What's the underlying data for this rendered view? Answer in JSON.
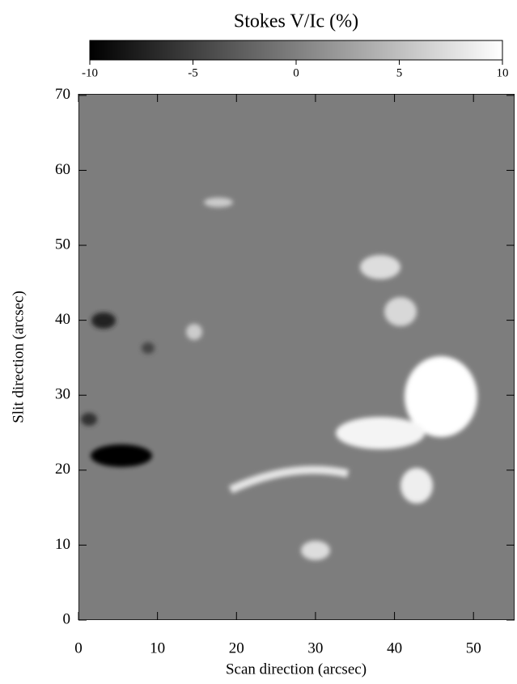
{
  "chart_data": {
    "type": "image",
    "title": "Stokes V/Ic (%)",
    "colorbar": {
      "clim": [
        -10,
        10
      ],
      "ticks": [
        -10,
        -5,
        0,
        5,
        10
      ],
      "colors": [
        "#000000",
        "#ffffff"
      ]
    },
    "xlabel": "Scan direction (arcsec)",
    "ylabel": "Slit direction (arcsec)",
    "xlim": [
      0,
      55.2
    ],
    "xticks": [
      0,
      10,
      20,
      30,
      40,
      50
    ],
    "ylim": [
      0,
      70.2
    ],
    "yticks": [
      0,
      10,
      20,
      30,
      40,
      50,
      60,
      70
    ]
  }
}
